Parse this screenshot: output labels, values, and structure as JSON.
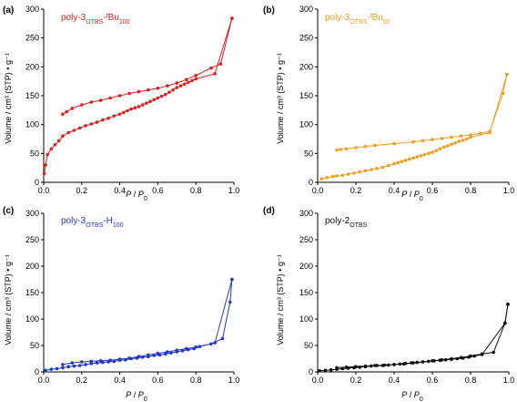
{
  "chart_data": [
    {
      "type": "line",
      "panel": "(a)",
      "color": "#e02020",
      "label": {
        "main": "poly-3",
        "sub1": "OTBS",
        "dash": "-",
        "italic": "t",
        "main2": "Bu",
        "sub2": "100"
      },
      "xlabel": {
        "p": "P",
        "slash": " / ",
        "p0": "P",
        "zero": "0"
      },
      "ylabel": "Volume / cm³ (STP) • g⁻¹",
      "xlim": [
        0,
        1.0
      ],
      "ylim": [
        0,
        300
      ],
      "xticks": [
        "0.0",
        "0.2",
        "0.4",
        "0.6",
        "0.8",
        "1.0"
      ],
      "yticks": [
        "0",
        "50",
        "100",
        "150",
        "200",
        "250",
        "300"
      ],
      "series": [
        {
          "values": [
            [
              0.003,
              15
            ],
            [
              0.01,
              30
            ],
            [
              0.02,
              48
            ],
            [
              0.04,
              58
            ],
            [
              0.06,
              65
            ],
            [
              0.08,
              72
            ],
            [
              0.1,
              80
            ],
            [
              0.13,
              86
            ],
            [
              0.16,
              90
            ],
            [
              0.19,
              94
            ],
            [
              0.22,
              98
            ],
            [
              0.25,
              101
            ],
            [
              0.28,
              104
            ],
            [
              0.31,
              108
            ],
            [
              0.34,
              111
            ],
            [
              0.37,
              115
            ],
            [
              0.4,
              118
            ],
            [
              0.42,
              121
            ],
            [
              0.44,
              124
            ],
            [
              0.46,
              127
            ],
            [
              0.48,
              129
            ],
            [
              0.5,
              131
            ],
            [
              0.52,
              134
            ],
            [
              0.54,
              137
            ],
            [
              0.56,
              140
            ],
            [
              0.58,
              143
            ],
            [
              0.6,
              146
            ],
            [
              0.62,
              149
            ],
            [
              0.64,
              152
            ],
            [
              0.66,
              156
            ],
            [
              0.68,
              160
            ],
            [
              0.7,
              164
            ],
            [
              0.72,
              167
            ],
            [
              0.74,
              170
            ],
            [
              0.76,
              173
            ],
            [
              0.78,
              176
            ],
            [
              0.8,
              179
            ],
            [
              0.9,
              188
            ],
            [
              0.99,
              284
            ]
          ]
        },
        {
          "values": [
            [
              0.99,
              284
            ],
            [
              0.93,
              205
            ],
            [
              0.88,
              198
            ],
            [
              0.8,
              185
            ],
            [
              0.75,
              178
            ],
            [
              0.7,
              172
            ],
            [
              0.65,
              167
            ],
            [
              0.6,
              163
            ],
            [
              0.55,
              160
            ],
            [
              0.5,
              157
            ],
            [
              0.45,
              154
            ],
            [
              0.4,
              150
            ],
            [
              0.35,
              146
            ],
            [
              0.3,
              142
            ],
            [
              0.25,
              139
            ],
            [
              0.2,
              134
            ],
            [
              0.15,
              128
            ],
            [
              0.12,
              122
            ],
            [
              0.1,
              118
            ]
          ]
        }
      ]
    },
    {
      "type": "line",
      "panel": "(b)",
      "color": "#f0a020",
      "label": {
        "main": "poly-3",
        "sub1": "OTBS",
        "dash": "-",
        "italic": "t",
        "main2": "Bu",
        "sub2": "50"
      },
      "xlabel": {
        "p": "P",
        "slash": " / ",
        "p0": "P",
        "zero": "0"
      },
      "ylabel": "Volume / cm³ (STP) • g⁻¹",
      "xlim": [
        0,
        1.0
      ],
      "ylim": [
        0,
        300
      ],
      "xticks": [
        "0.0",
        "0.2",
        "0.4",
        "0.6",
        "0.8",
        "1.0"
      ],
      "yticks": [
        "0",
        "50",
        "100",
        "150",
        "200",
        "250",
        "300"
      ],
      "series": [
        {
          "values": [
            [
              0.02,
              6
            ],
            [
              0.05,
              8
            ],
            [
              0.08,
              10
            ],
            [
              0.1,
              11
            ],
            [
              0.13,
              12
            ],
            [
              0.16,
              14
            ],
            [
              0.19,
              16
            ],
            [
              0.22,
              18
            ],
            [
              0.25,
              20
            ],
            [
              0.28,
              22
            ],
            [
              0.31,
              24
            ],
            [
              0.34,
              26
            ],
            [
              0.37,
              29
            ],
            [
              0.4,
              32
            ],
            [
              0.42,
              34
            ],
            [
              0.44,
              36
            ],
            [
              0.46,
              38
            ],
            [
              0.48,
              40
            ],
            [
              0.5,
              42
            ],
            [
              0.52,
              44
            ],
            [
              0.54,
              46
            ],
            [
              0.56,
              48
            ],
            [
              0.58,
              50
            ],
            [
              0.6,
              52
            ],
            [
              0.62,
              55
            ],
            [
              0.64,
              58
            ],
            [
              0.66,
              61
            ],
            [
              0.68,
              63
            ],
            [
              0.7,
              66
            ],
            [
              0.72,
              68
            ],
            [
              0.74,
              71
            ],
            [
              0.76,
              73
            ],
            [
              0.78,
              75
            ],
            [
              0.8,
              78
            ],
            [
              0.9,
              86
            ],
            [
              0.99,
              187
            ]
          ]
        },
        {
          "values": [
            [
              0.99,
              187
            ],
            [
              0.97,
              154
            ],
            [
              0.9,
              88
            ],
            [
              0.85,
              85
            ],
            [
              0.8,
              82
            ],
            [
              0.75,
              80
            ],
            [
              0.7,
              78
            ],
            [
              0.65,
              76
            ],
            [
              0.6,
              74
            ],
            [
              0.55,
              72
            ],
            [
              0.5,
              70
            ],
            [
              0.4,
              67
            ],
            [
              0.3,
              64
            ],
            [
              0.25,
              62
            ],
            [
              0.2,
              60
            ],
            [
              0.15,
              58
            ],
            [
              0.12,
              57
            ],
            [
              0.1,
              56
            ]
          ]
        }
      ]
    },
    {
      "type": "line",
      "panel": "(c)",
      "color": "#2438c8",
      "label": {
        "main": "poly-3",
        "sub1": "OTBS",
        "dash": "-",
        "italic": "",
        "main2": "H",
        "sub2": "100"
      },
      "xlabel": {
        "p": "P",
        "slash": " / ",
        "p0": "P",
        "zero": "0"
      },
      "ylabel": "Volume / cm³ (STP) • g⁻¹",
      "xlim": [
        0,
        1.0
      ],
      "ylim": [
        0,
        300
      ],
      "xticks": [
        "0.0",
        "0.2",
        "0.4",
        "0.6",
        "0.8",
        "1.0"
      ],
      "yticks": [
        "0",
        "50",
        "100",
        "150",
        "200",
        "250",
        "300"
      ],
      "series": [
        {
          "values": [
            [
              0.01,
              3
            ],
            [
              0.04,
              5
            ],
            [
              0.07,
              6
            ],
            [
              0.1,
              8
            ],
            [
              0.13,
              10
            ],
            [
              0.16,
              11
            ],
            [
              0.19,
              12
            ],
            [
              0.22,
              14
            ],
            [
              0.25,
              16
            ],
            [
              0.28,
              17
            ],
            [
              0.31,
              18
            ],
            [
              0.34,
              19
            ],
            [
              0.37,
              20
            ],
            [
              0.4,
              22
            ],
            [
              0.43,
              23
            ],
            [
              0.46,
              25
            ],
            [
              0.49,
              26
            ],
            [
              0.52,
              28
            ],
            [
              0.55,
              29
            ],
            [
              0.58,
              31
            ],
            [
              0.61,
              32
            ],
            [
              0.64,
              34
            ],
            [
              0.67,
              36
            ],
            [
              0.7,
              38
            ],
            [
              0.73,
              40
            ],
            [
              0.76,
              42
            ],
            [
              0.79,
              44
            ],
            [
              0.82,
              48
            ],
            [
              0.9,
              55
            ],
            [
              0.99,
              175
            ]
          ]
        },
        {
          "values": [
            [
              0.99,
              175
            ],
            [
              0.98,
              132
            ],
            [
              0.94,
              63
            ],
            [
              0.88,
              53
            ],
            [
              0.8,
              47
            ],
            [
              0.75,
              44
            ],
            [
              0.7,
              41
            ],
            [
              0.65,
              38
            ],
            [
              0.6,
              35
            ],
            [
              0.55,
              32
            ],
            [
              0.5,
              29
            ],
            [
              0.45,
              26
            ],
            [
              0.4,
              24
            ],
            [
              0.35,
              22
            ],
            [
              0.3,
              21
            ],
            [
              0.25,
              20
            ],
            [
              0.2,
              19
            ],
            [
              0.15,
              17
            ],
            [
              0.1,
              14
            ]
          ]
        }
      ]
    },
    {
      "type": "line",
      "panel": "(d)",
      "color": "#111111",
      "label": {
        "main": "poly-2",
        "sub1": "OTBS",
        "dash": "",
        "italic": "",
        "main2": "",
        "sub2": ""
      },
      "xlabel": {
        "p": "P",
        "slash": " / ",
        "p0": "P",
        "zero": "0"
      },
      "ylabel": "Volume / cm³ (STP) • g⁻¹",
      "xlim": [
        0,
        1.0
      ],
      "ylim": [
        0,
        300
      ],
      "xticks": [
        "0.0",
        "0.2",
        "0.4",
        "0.6",
        "0.8",
        "1.0"
      ],
      "yticks": [
        "0",
        "50",
        "100",
        "150",
        "200",
        "250",
        "300"
      ],
      "series": [
        {
          "values": [
            [
              0.01,
              2
            ],
            [
              0.04,
              3
            ],
            [
              0.07,
              4
            ],
            [
              0.1,
              5
            ],
            [
              0.13,
              6
            ],
            [
              0.16,
              7
            ],
            [
              0.19,
              8
            ],
            [
              0.22,
              9
            ],
            [
              0.25,
              10
            ],
            [
              0.28,
              11
            ],
            [
              0.31,
              12
            ],
            [
              0.34,
              12
            ],
            [
              0.37,
              13
            ],
            [
              0.4,
              14
            ],
            [
              0.43,
              15
            ],
            [
              0.46,
              16
            ],
            [
              0.49,
              17
            ],
            [
              0.52,
              18
            ],
            [
              0.55,
              19
            ],
            [
              0.58,
              20
            ],
            [
              0.61,
              21
            ],
            [
              0.64,
              22
            ],
            [
              0.67,
              23
            ],
            [
              0.7,
              24
            ],
            [
              0.73,
              25
            ],
            [
              0.76,
              26
            ],
            [
              0.79,
              28
            ],
            [
              0.82,
              30
            ],
            [
              0.86,
              33
            ],
            [
              0.98,
              92
            ],
            [
              0.995,
              128
            ]
          ]
        },
        {
          "values": [
            [
              0.995,
              128
            ],
            [
              0.98,
              92
            ],
            [
              0.92,
              37
            ],
            [
              0.86,
              34
            ],
            [
              0.8,
              30
            ],
            [
              0.75,
              27
            ],
            [
              0.7,
              25
            ],
            [
              0.65,
              23
            ],
            [
              0.6,
              21
            ],
            [
              0.55,
              19
            ],
            [
              0.5,
              17
            ],
            [
              0.45,
              15
            ],
            [
              0.4,
              14
            ],
            [
              0.35,
              13
            ],
            [
              0.3,
              12
            ],
            [
              0.25,
              11
            ],
            [
              0.2,
              10
            ],
            [
              0.15,
              9
            ],
            [
              0.1,
              8
            ]
          ]
        }
      ]
    }
  ]
}
